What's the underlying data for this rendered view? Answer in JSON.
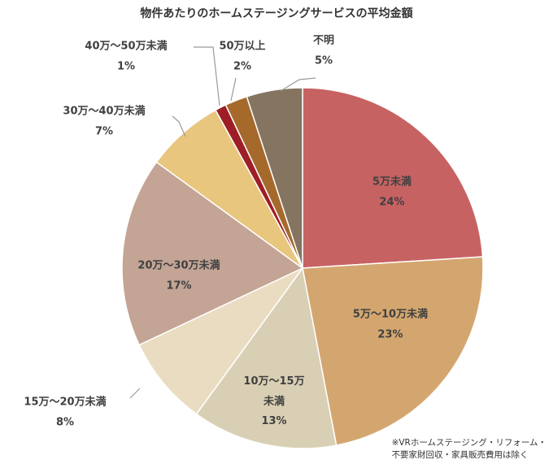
{
  "chart_data": {
    "type": "pie",
    "title": "物件あたりのホームステージングサービスの平均金額",
    "unit": "%",
    "slices": [
      {
        "label": "5万未満",
        "value": 24,
        "value_label": "24%",
        "color": "#c76263"
      },
      {
        "label": "5万～10万未満",
        "value": 23,
        "value_label": "23%",
        "color": "#d4a66f"
      },
      {
        "label": "10万～15万未満",
        "label_lines": [
          "10万～15万",
          "未満"
        ],
        "value": 13,
        "value_label": "13%",
        "color": "#d9cfb4"
      },
      {
        "label": "15万～20万未満",
        "value": 8,
        "value_label": "8%",
        "color": "#eadcc1"
      },
      {
        "label": "20万～30万未満",
        "value": 17,
        "value_label": "17%",
        "color": "#c3a495"
      },
      {
        "label": "30万～40万未満",
        "value": 7,
        "value_label": "7%",
        "color": "#e8c67e"
      },
      {
        "label": "40万～50万未満",
        "value": 1,
        "value_label": "1%",
        "color": "#9e1e25"
      },
      {
        "label": "50万以上",
        "value": 2,
        "value_label": "2%",
        "color": "#a5692b"
      },
      {
        "label": "不明",
        "value": 5,
        "value_label": "5%",
        "color": "#847460"
      }
    ],
    "legend": "none"
  },
  "footnote": {
    "line1": "※VRホームステージング・リフォーム・",
    "line2": "不要家財回収・家具販売費用は除く"
  }
}
